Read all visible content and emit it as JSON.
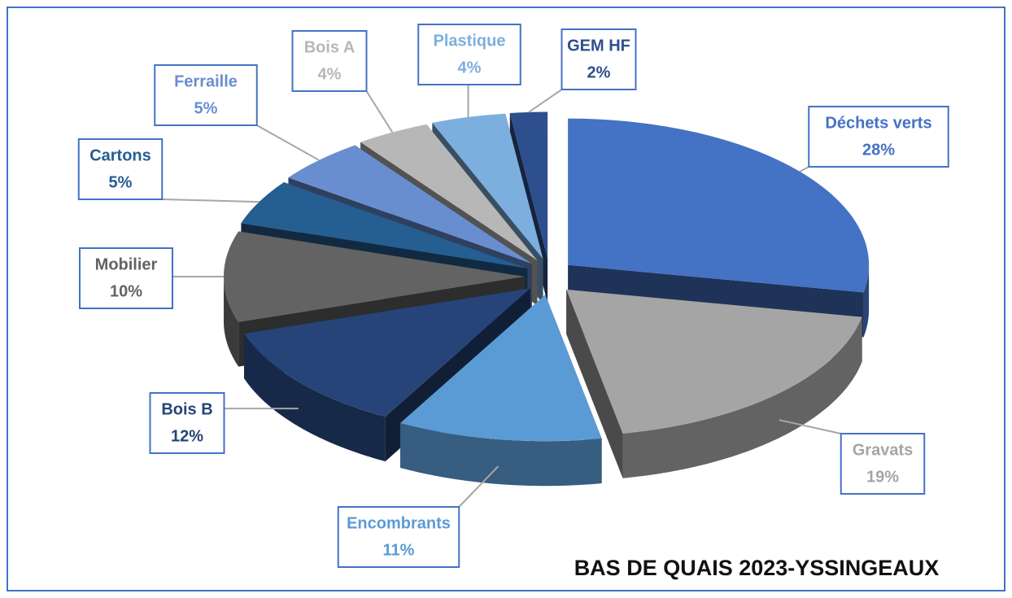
{
  "chart_data": {
    "type": "pie",
    "title": "BAS DE QUAIS 2023-YSSINGEAUX",
    "categories": [
      "Déchets verts",
      "Gravats",
      "Encombrants",
      "Bois B",
      "Mobilier",
      "Cartons",
      "Ferraille",
      "Bois A",
      "Plastique",
      "GEM HF"
    ],
    "values": [
      28,
      19,
      11,
      12,
      10,
      5,
      5,
      4,
      4,
      2
    ],
    "value_labels": [
      "28%",
      "19%",
      "11%",
      "12%",
      "10%",
      "5%",
      "5%",
      "4%",
      "4%",
      "2%"
    ],
    "colors": [
      "#4472c4",
      "#a5a5a5",
      "#5b9bd5",
      "#264478",
      "#636363",
      "#255e91",
      "#698ed0",
      "#b7b7b7",
      "#7cafdd",
      "#2e4f8e"
    ]
  }
}
